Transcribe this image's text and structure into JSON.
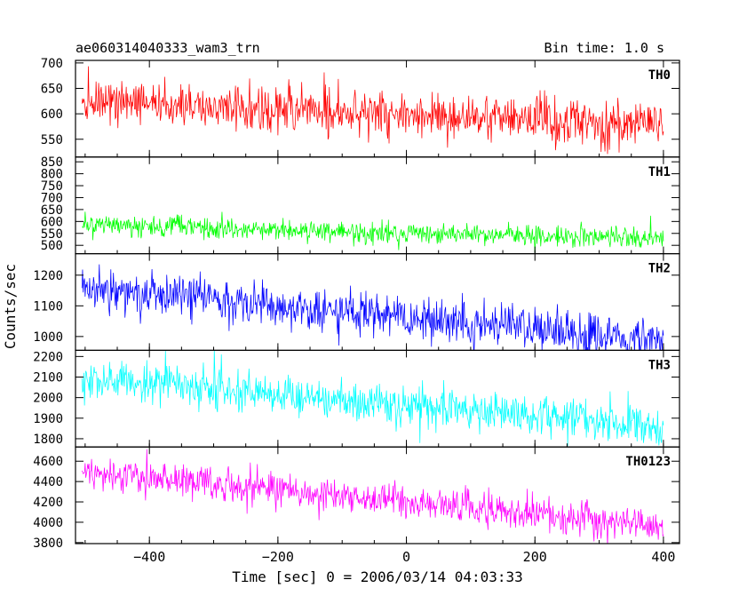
{
  "header": {
    "title": "ae060314040333_wam3_trn",
    "bin_time": "Bin time: 1.0 s"
  },
  "axes": {
    "xlabel": "Time [sec] 0 = 2006/03/14 04:03:33",
    "ylabel": "Counts/sec"
  },
  "chart_data": {
    "type": "line",
    "x_range": [
      -515,
      425
    ],
    "x_ticks": [
      -400,
      -200,
      0,
      200,
      400
    ],
    "x_tick_labels": [
      "−400",
      "−200",
      "0",
      "200",
      "400"
    ],
    "data_x_extent": [
      -505,
      400
    ],
    "bin_seconds": 1.0,
    "panels": [
      {
        "name": "TH0",
        "color": "#ff0000",
        "ylim": [
          515,
          705
        ],
        "y_ticks": [
          550,
          600,
          650,
          700
        ],
        "y_tick_labels": [
          "550",
          "600",
          "650",
          "700"
        ],
        "mean_start": 625,
        "mean_end": 578,
        "noise_sd": 23
      },
      {
        "name": "TH1",
        "color": "#00ff00",
        "ylim": [
          465,
          870
        ],
        "y_ticks": [
          500,
          550,
          600,
          650,
          700,
          750,
          800,
          850
        ],
        "y_tick_labels": [
          "500",
          "550",
          "600",
          "650",
          "700",
          "750",
          "800",
          "850"
        ],
        "mean_start": 585,
        "mean_end": 528,
        "noise_sd": 22
      },
      {
        "name": "TH2",
        "color": "#0000ff",
        "ylim": [
          955,
          1270
        ],
        "y_ticks": [
          1000,
          1100,
          1200
        ],
        "y_tick_labels": [
          "1000",
          "1100",
          "1200"
        ],
        "mean_start": 1160,
        "mean_end": 990,
        "noise_sd": 35
      },
      {
        "name": "TH3",
        "color": "#00ffff",
        "ylim": [
          1760,
          2230
        ],
        "y_ticks": [
          1800,
          1900,
          2000,
          2100,
          2200
        ],
        "y_tick_labels": [
          "1800",
          "1900",
          "2000",
          "2100",
          "2200"
        ],
        "mean_start": 2100,
        "mean_end": 1860,
        "noise_sd": 50
      },
      {
        "name": "TH0123",
        "color": "#ff00ff",
        "ylim": [
          3790,
          4740
        ],
        "y_ticks": [
          3800,
          4000,
          4200,
          4400,
          4600
        ],
        "y_tick_labels": [
          "3800",
          "4000",
          "4200",
          "4400",
          "4600"
        ],
        "mean_start": 4500,
        "mean_end": 3960,
        "noise_sd": 80
      }
    ]
  }
}
